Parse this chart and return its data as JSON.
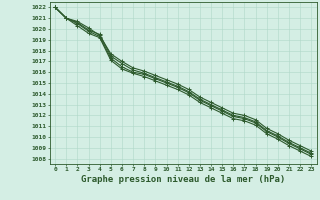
{
  "xlabel": "Graphe pression niveau de la mer (hPa)",
  "xlim": [
    0,
    23
  ],
  "ylim": [
    1008,
    1022
  ],
  "yticks": [
    1008,
    1009,
    1010,
    1011,
    1012,
    1013,
    1014,
    1015,
    1016,
    1017,
    1018,
    1019,
    1020,
    1021,
    1022
  ],
  "xticks": [
    0,
    1,
    2,
    3,
    4,
    5,
    6,
    7,
    8,
    9,
    10,
    11,
    12,
    13,
    14,
    15,
    16,
    17,
    18,
    19,
    20,
    21,
    22,
    23
  ],
  "background_color": "#d4eee4",
  "grid_color": "#b0d8c8",
  "line_color": "#2d5a2d",
  "series": [
    [
      1022.0,
      1021.0,
      1020.5,
      1019.8,
      1019.3,
      1017.3,
      1016.5,
      1016.0,
      1015.8,
      1015.4,
      1015.0,
      1014.6,
      1014.1,
      1013.4,
      1012.9,
      1012.4,
      1011.9,
      1011.7,
      1011.3,
      1010.5,
      1010.0,
      1009.4,
      1008.9,
      1008.4
    ],
    [
      1022.0,
      1021.0,
      1020.6,
      1019.9,
      1019.5,
      1017.5,
      1016.8,
      1016.2,
      1015.9,
      1015.5,
      1015.1,
      1014.7,
      1014.2,
      1013.5,
      1013.0,
      1012.5,
      1012.0,
      1011.8,
      1011.4,
      1010.6,
      1010.1,
      1009.5,
      1009.0,
      1008.5
    ],
    [
      1022.0,
      1021.0,
      1020.3,
      1019.6,
      1019.2,
      1017.1,
      1016.3,
      1015.9,
      1015.6,
      1015.2,
      1014.8,
      1014.4,
      1013.9,
      1013.2,
      1012.7,
      1012.2,
      1011.7,
      1011.5,
      1011.1,
      1010.3,
      1009.8,
      1009.2,
      1008.7,
      1008.2
    ],
    [
      1022.0,
      1021.0,
      1020.7,
      1020.1,
      1019.4,
      1017.7,
      1017.0,
      1016.4,
      1016.1,
      1015.7,
      1015.3,
      1014.9,
      1014.4,
      1013.7,
      1013.2,
      1012.7,
      1012.2,
      1012.0,
      1011.6,
      1010.8,
      1010.3,
      1009.7,
      1009.2,
      1008.7
    ]
  ],
  "marker": "+",
  "markersize": 3,
  "linewidth": 0.8,
  "xlabel_fontsize": 6.5,
  "tick_fontsize": 4.5
}
